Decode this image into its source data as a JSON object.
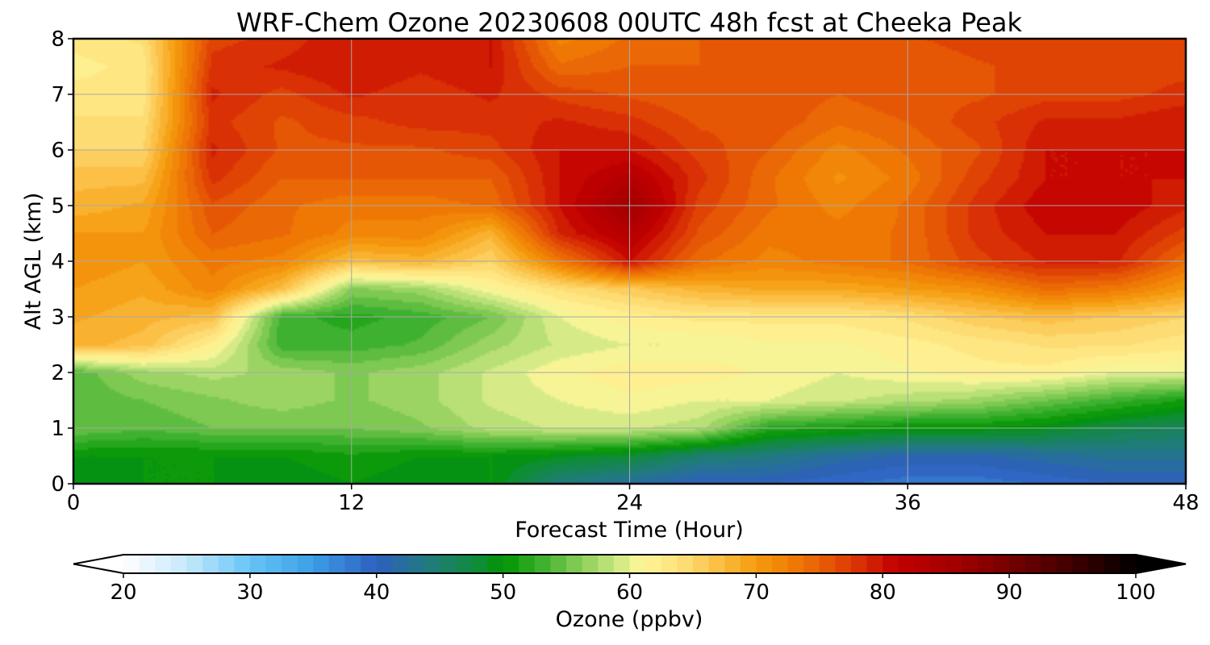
{
  "chart_data": {
    "type": "heatmap",
    "title": "WRF-Chem Ozone  20230608 00UTC 48h fcst at Cheeka Peak",
    "xlabel": "Forecast Time (Hour)",
    "ylabel": "Alt AGL (km)",
    "xlim": [
      0,
      48
    ],
    "ylim": [
      0,
      8
    ],
    "xticks": [
      0,
      12,
      24,
      36,
      48
    ],
    "yticks": [
      0,
      1,
      2,
      3,
      4,
      5,
      6,
      7,
      8
    ],
    "grid": true,
    "x": [
      0,
      3,
      6,
      9,
      12,
      15,
      18,
      21,
      24,
      27,
      30,
      33,
      36,
      39,
      42,
      45,
      48
    ],
    "y": [
      0,
      0.5,
      1,
      1.5,
      2,
      2.5,
      3,
      3.5,
      4,
      4.5,
      5,
      5.5,
      6,
      6.5,
      7,
      7.5,
      8
    ],
    "values": [
      [
        49,
        50,
        50,
        49,
        50,
        49,
        50,
        44,
        42,
        40,
        40,
        39,
        38,
        38,
        39,
        40,
        40
      ],
      [
        50,
        50,
        50,
        50,
        51,
        50,
        50,
        49,
        48,
        45,
        44,
        42,
        41,
        41,
        42,
        43,
        43
      ],
      [
        55,
        54,
        55,
        55,
        55,
        56,
        58,
        59,
        59,
        58,
        52,
        51,
        50,
        50,
        49,
        47,
        46
      ],
      [
        54,
        55,
        56,
        57,
        56,
        57,
        59,
        60,
        61,
        60,
        60,
        59,
        58,
        57,
        55,
        53,
        51
      ],
      [
        54,
        57,
        58,
        57,
        56,
        57,
        59,
        61,
        62,
        62,
        61,
        60,
        61,
        62,
        62,
        60,
        60
      ],
      [
        68,
        67,
        62,
        53,
        53,
        54,
        57,
        59,
        60,
        60,
        61,
        61,
        62,
        63,
        64,
        64,
        63
      ],
      [
        69,
        68,
        67,
        53,
        52,
        53,
        55,
        60,
        62,
        63,
        63,
        63,
        64,
        66,
        67,
        66,
        65
      ],
      [
        70,
        69,
        72,
        67,
        56,
        57,
        61,
        64,
        66,
        68,
        69,
        69,
        70,
        71,
        74,
        73,
        70
      ],
      [
        71,
        70,
        73,
        72,
        67,
        68,
        65,
        73,
        80,
        74,
        72,
        73,
        74,
        77,
        79,
        79,
        74
      ],
      [
        70,
        70,
        75,
        74,
        72,
        72,
        68,
        79,
        83,
        76,
        73,
        73,
        74,
        78,
        80,
        80,
        77
      ],
      [
        68,
        69,
        76,
        74,
        73,
        73,
        74,
        80,
        86,
        77,
        74,
        72,
        74,
        78,
        81,
        81,
        79
      ],
      [
        67,
        67,
        78,
        75,
        75,
        75,
        75,
        80,
        83,
        78,
        74,
        71,
        73,
        77,
        80,
        80,
        80
      ],
      [
        65,
        65,
        79,
        76,
        76,
        76,
        77,
        80,
        80,
        77,
        75,
        72,
        74,
        76,
        80,
        80,
        80
      ],
      [
        64,
        64,
        78,
        76,
        77,
        78,
        78,
        79,
        78,
        76,
        76,
        74,
        75,
        77,
        79,
        79,
        80
      ],
      [
        63,
        63,
        79,
        77,
        79,
        78,
        79,
        77,
        76,
        75,
        76,
        75,
        76,
        76,
        77,
        77,
        78
      ],
      [
        62,
        63,
        78,
        79,
        80,
        79,
        80,
        74,
        75,
        75,
        76,
        75,
        75,
        76,
        77,
        77,
        77
      ],
      [
        63,
        64,
        77,
        78,
        80,
        79,
        80,
        72,
        74,
        75,
        76,
        75,
        76,
        77,
        77,
        77,
        77
      ]
    ],
    "colorbar": {
      "label": "Ozone  (ppbv)",
      "min": 20,
      "max": 100,
      "ticks": [
        20,
        30,
        40,
        50,
        60,
        70,
        80,
        90,
        100
      ],
      "extend": "both",
      "placement": "bottom",
      "stops": [
        {
          "v": 20,
          "c": "#ffffff"
        },
        {
          "v": 25,
          "c": "#c6e8fb"
        },
        {
          "v": 30,
          "c": "#66c4f5"
        },
        {
          "v": 35,
          "c": "#3c9ee6"
        },
        {
          "v": 40,
          "c": "#2e5fbf"
        },
        {
          "v": 44,
          "c": "#217a80"
        },
        {
          "v": 48,
          "c": "#0f8c38"
        },
        {
          "v": 50,
          "c": "#009400"
        },
        {
          "v": 53,
          "c": "#3cb02e"
        },
        {
          "v": 56,
          "c": "#86cc56"
        },
        {
          "v": 59,
          "c": "#cde884"
        },
        {
          "v": 61,
          "c": "#fff799"
        },
        {
          "v": 64,
          "c": "#fde07a"
        },
        {
          "v": 67,
          "c": "#fcbf45"
        },
        {
          "v": 70,
          "c": "#f59b0e"
        },
        {
          "v": 73,
          "c": "#ef7a05"
        },
        {
          "v": 76,
          "c": "#e55205"
        },
        {
          "v": 79,
          "c": "#d42205"
        },
        {
          "v": 81,
          "c": "#c20000"
        },
        {
          "v": 86,
          "c": "#a00000"
        },
        {
          "v": 91,
          "c": "#6b0000"
        },
        {
          "v": 96,
          "c": "#330000"
        },
        {
          "v": 100,
          "c": "#000000"
        }
      ]
    }
  }
}
